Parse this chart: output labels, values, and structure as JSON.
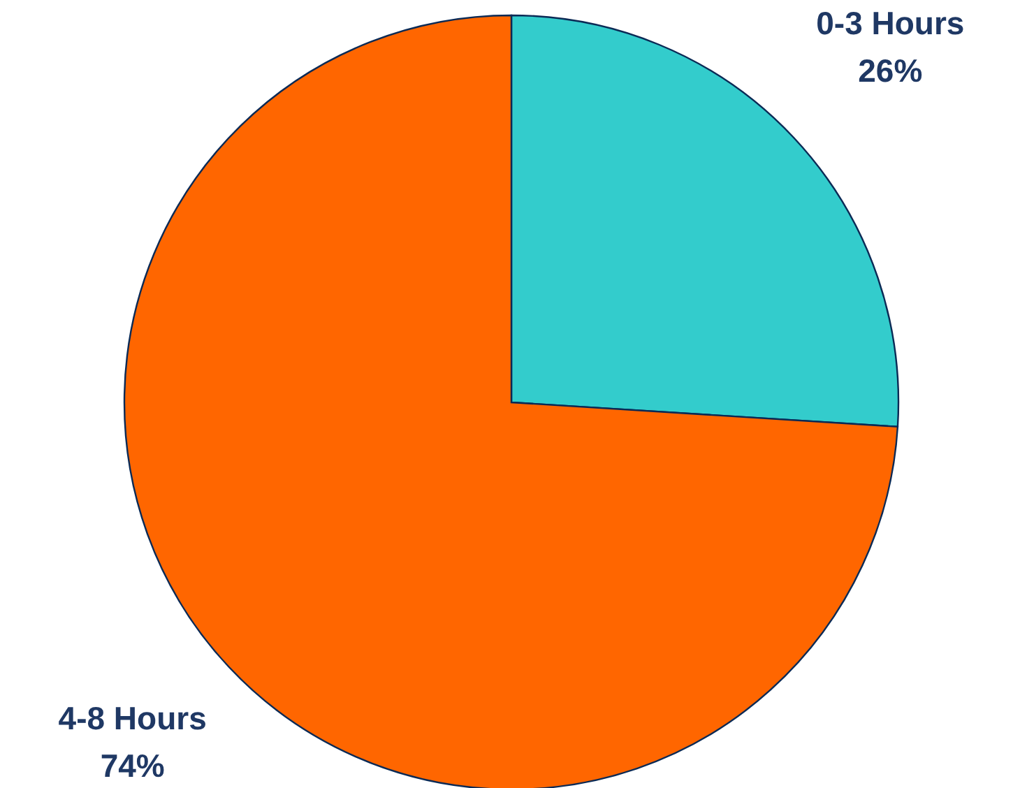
{
  "chart_data": {
    "type": "pie",
    "categories": [
      "0-3 Hours",
      "4-8 Hours"
    ],
    "values": [
      26,
      74
    ],
    "colors": [
      "#33cccc",
      "#ff6600"
    ],
    "value_labels": [
      "26%",
      "74%"
    ],
    "legend": false
  }
}
